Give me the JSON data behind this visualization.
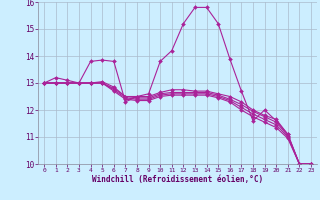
{
  "xlabel": "Windchill (Refroidissement éolien,°C)",
  "background_color": "#cceeff",
  "grid_color": "#aabbcc",
  "line_color": "#aa2299",
  "xlim": [
    -0.5,
    23.5
  ],
  "ylim": [
    10,
    16
  ],
  "yticks": [
    10,
    11,
    12,
    13,
    14,
    15,
    16
  ],
  "xticks": [
    0,
    1,
    2,
    3,
    4,
    5,
    6,
    7,
    8,
    9,
    10,
    11,
    12,
    13,
    14,
    15,
    16,
    17,
    18,
    19,
    20,
    21,
    22,
    23
  ],
  "series": [
    [
      13.0,
      13.2,
      13.1,
      13.0,
      13.8,
      13.85,
      13.8,
      12.3,
      12.5,
      12.6,
      13.8,
      14.2,
      15.2,
      15.8,
      15.8,
      15.2,
      13.9,
      12.7,
      11.6,
      12.0,
      11.6,
      11.1,
      10.0,
      10.0
    ],
    [
      13.0,
      13.0,
      13.0,
      13.0,
      13.0,
      13.05,
      12.85,
      12.5,
      12.5,
      12.5,
      12.65,
      12.75,
      12.75,
      12.7,
      12.7,
      12.6,
      12.5,
      12.3,
      12.0,
      11.8,
      11.65,
      11.1,
      10.0,
      10.0
    ],
    [
      13.0,
      13.0,
      13.0,
      13.0,
      13.0,
      13.0,
      12.8,
      12.5,
      12.45,
      12.45,
      12.6,
      12.65,
      12.65,
      12.65,
      12.65,
      12.55,
      12.4,
      12.2,
      11.95,
      11.75,
      11.55,
      11.05,
      10.0,
      10.0
    ],
    [
      13.0,
      13.0,
      13.0,
      13.0,
      13.0,
      13.0,
      12.75,
      12.45,
      12.4,
      12.4,
      12.55,
      12.6,
      12.6,
      12.6,
      12.6,
      12.5,
      12.35,
      12.1,
      11.85,
      11.65,
      11.45,
      11.0,
      10.0,
      10.0
    ],
    [
      13.0,
      13.0,
      13.0,
      13.0,
      13.0,
      13.0,
      12.7,
      12.4,
      12.35,
      12.35,
      12.5,
      12.55,
      12.55,
      12.55,
      12.55,
      12.45,
      12.3,
      12.0,
      11.75,
      11.55,
      11.35,
      10.95,
      10.0,
      10.0
    ]
  ]
}
